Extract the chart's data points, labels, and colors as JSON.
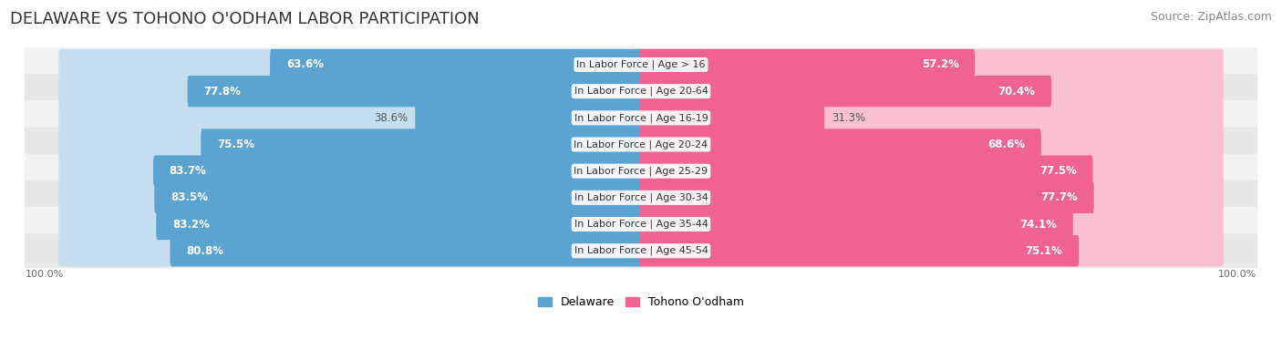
{
  "title": "DELAWARE VS TOHONO O'ODHAM LABOR PARTICIPATION",
  "source": "Source: ZipAtlas.com",
  "categories": [
    "In Labor Force | Age > 16",
    "In Labor Force | Age 20-64",
    "In Labor Force | Age 16-19",
    "In Labor Force | Age 20-24",
    "In Labor Force | Age 25-29",
    "In Labor Force | Age 30-34",
    "In Labor Force | Age 35-44",
    "In Labor Force | Age 45-54"
  ],
  "delaware_values": [
    63.6,
    77.8,
    38.6,
    75.5,
    83.7,
    83.5,
    83.2,
    80.8
  ],
  "tohono_values": [
    57.2,
    70.4,
    31.3,
    68.6,
    77.5,
    77.7,
    74.1,
    75.1
  ],
  "delaware_color": "#5ba3d0",
  "tohono_color": "#f06292",
  "delaware_light_color": "#c5dff0",
  "tohono_light_color": "#f9c0d0",
  "row_bg_colors": [
    "#f2f2f2",
    "#e8e8e8",
    "#f2f2f2",
    "#e8e8e8",
    "#f2f2f2",
    "#e8e8e8",
    "#f2f2f2",
    "#e8e8e8"
  ],
  "title_fontsize": 13,
  "source_fontsize": 9,
  "bar_label_fontsize": 8.5,
  "category_fontsize": 8,
  "legend_fontsize": 9,
  "axis_label_fontsize": 8,
  "x_label": "100.0%"
}
